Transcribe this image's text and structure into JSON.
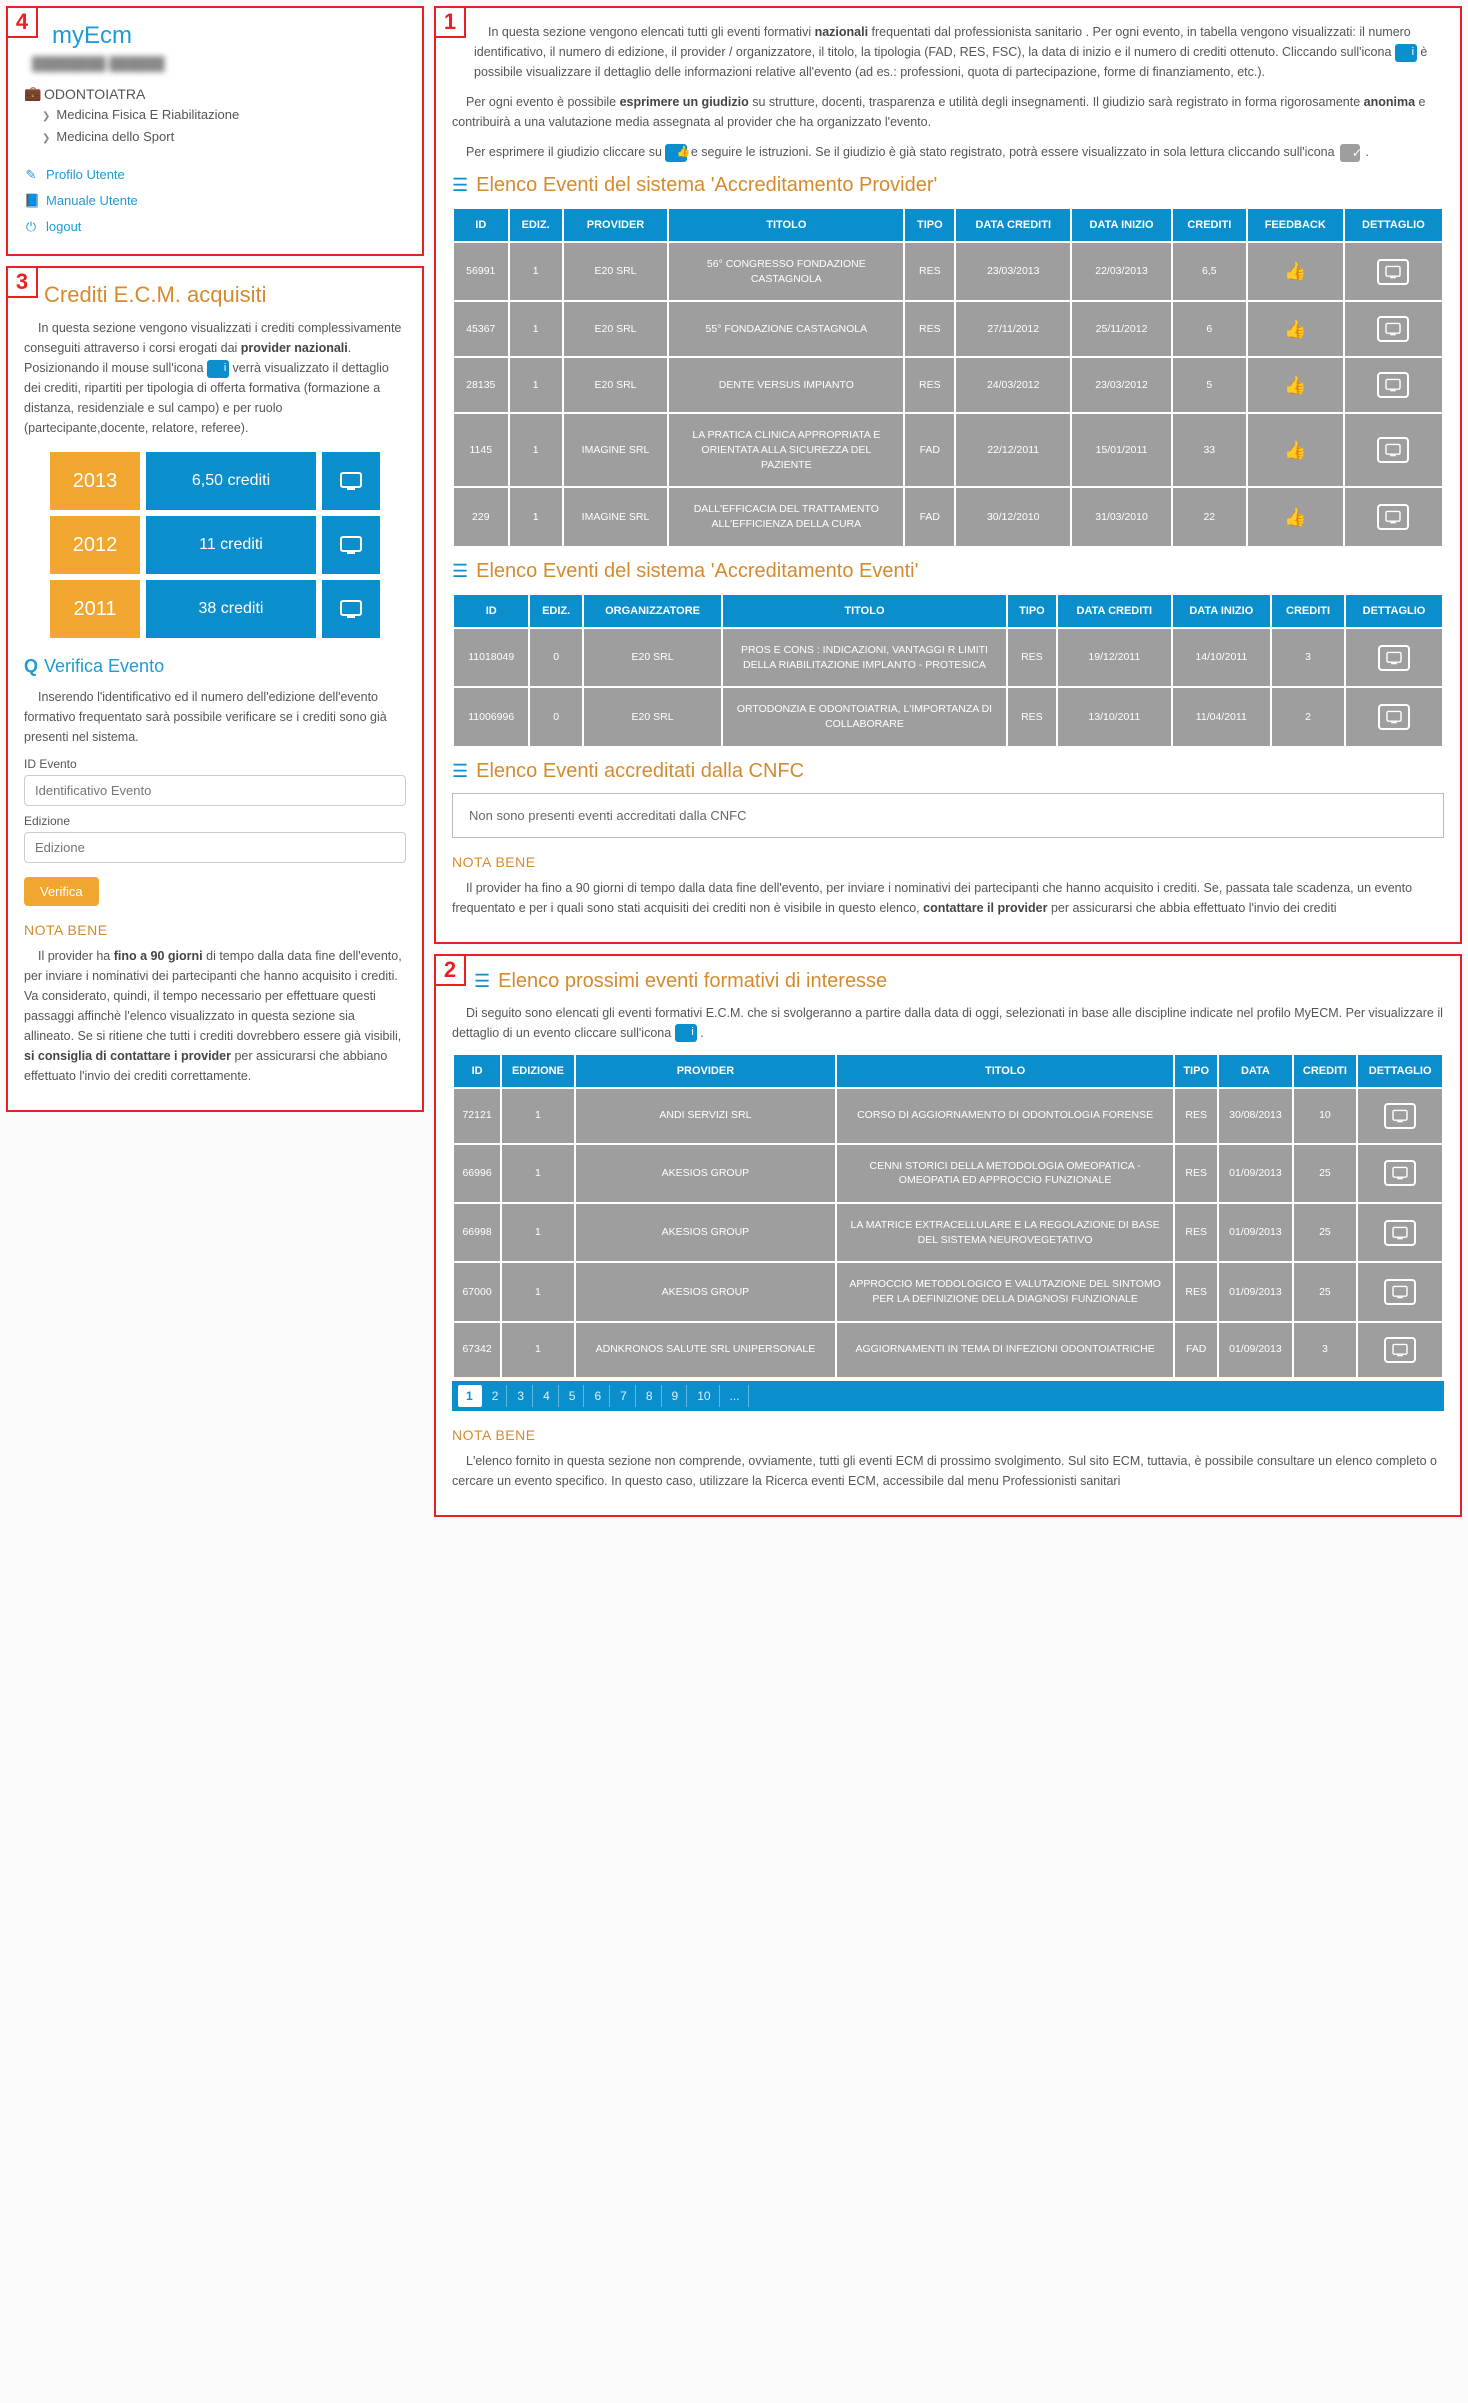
{
  "colors": {
    "accent": "#0b8fcc",
    "orange": "#f0a62f",
    "highlight": "#d68a2e",
    "danger": "#ec2024",
    "grey": "#9e9e9e"
  },
  "badges": {
    "p1": "1",
    "p2": "2",
    "p3": "3",
    "p4": "4"
  },
  "sidebar": {
    "brand": "myEcm",
    "blurred": "████████ ██████",
    "profession_icon": "briefcase",
    "profession": "ODONTOIATRA",
    "spec1": "Medicina Fisica E Riabilitazione",
    "spec2": "Medicina dello Sport",
    "link_profile": "Profilo Utente",
    "link_manual": "Manuale Utente",
    "link_logout": "logout"
  },
  "credits": {
    "title": "Crediti E.C.M. acquisiti",
    "intro_a": "In questa sezione vengono visualizzati i crediti complessivamente conseguiti attraverso i corsi erogati dai ",
    "intro_b": "provider nazionali",
    "intro_c": ". Posizionando il mouse sull'icona ",
    "intro_d": " verrà visualizzato il dettaglio dei crediti, ripartiti per tipologia di offerta formativa (formazione a distanza, residenziale e sul campo) e per ruolo (partecipante,docente, relatore, referee).",
    "rows": [
      {
        "year": "2013",
        "credits": "6,50 crediti"
      },
      {
        "year": "2012",
        "credits": "11 crediti"
      },
      {
        "year": "2011",
        "credits": "38 crediti"
      }
    ],
    "verify_h": "Verifica Evento",
    "verify_intro": "Inserendo l'identificativo ed il numero dell'edizione dell'evento formativo frequentato sarà possibile verificare se i crediti sono già presenti nel sistema.",
    "id_label": "ID Evento",
    "id_ph": "Identificativo Evento",
    "ed_label": "Edizione",
    "ed_ph": "Edizione",
    "verify_btn": "Verifica",
    "nota_h": "NOTA BENE",
    "nota_a": "Il provider ha ",
    "nota_b": "fino a 90 giorni",
    "nota_c": " di tempo dalla data fine dell'evento, per inviare i nominativi dei partecipanti che hanno acquisito i crediti. Va considerato, quindi, il tempo necessario per effettuare questi passaggi affinchè l'elenco visualizzato in questa sezione sia allineato. Se si ritiene che tutti i crediti dovrebbero essere già visibili, ",
    "nota_d": "si consiglia di contattare i provider",
    "nota_e": " per assicurarsi che abbiano effettuato l'invio dei crediti correttamente."
  },
  "main": {
    "p1a": "In questa sezione vengono elencati tutti gli eventi formativi ",
    "p1b": "nazionali",
    "p1c": " frequentati dal professionista sanitario . Per ogni evento, in tabella vengono visualizzati: il numero identificativo, il numero di edizione, il provider / organizzatore, il titolo, la tipologia (FAD, RES, FSC), la data di inizio e il numero di crediti ottenuto. Cliccando sull'icona ",
    "p1d": " è possibile visualizzare il dettaglio delle informazioni relative all'evento (ad es.: professioni, quota di partecipazione, forme di finanziamento, etc.).",
    "p2a": "Per ogni evento è possibile ",
    "p2b": "esprimere un giudizio",
    "p2c": " su strutture, docenti, trasparenza e utilità degli insegnamenti. Il giudizio sarà registrato in forma rigorosamente ",
    "p2d": "anonima",
    "p2e": " e contribuirà a una valutazione media assegnata al provider che ha organizzato l'evento.",
    "p3a": "Per esprimere il giudizio cliccare su ",
    "p3b": " e seguire le istruzioni. Se il giudizio è già stato registrato, potrà essere visualizzato in sola lettura cliccando sull'icona ",
    "h1": "Elenco Eventi del sistema 'Accreditamento Provider'",
    "h2": "Elenco Eventi del sistema 'Accreditamento Eventi'",
    "h3": "Elenco Eventi accreditati dalla CNFC",
    "empty": "Non sono presenti eventi accreditati dalla CNFC",
    "nota_h": "NOTA BENE",
    "nota_a": "Il provider ha fino a 90 giorni di tempo dalla data fine dell'evento, per inviare i nominativi dei partecipanti che hanno acquisito i crediti. Se, passata tale scadenza, un evento frequentato e per i quali sono stati acquisiti dei crediti non è visibile in questo elenco, ",
    "nota_b": "contattare il provider",
    "nota_c": " per assicurarsi che abbia effettuato l'invio dei crediti"
  },
  "t1": {
    "cols": [
      "ID",
      "EDIZ.",
      "PROVIDER",
      "TITOLO",
      "TIPO",
      "DATA CREDITI",
      "DATA INIZIO",
      "CREDITI",
      "FEEDBACK",
      "DETTAGLIO"
    ],
    "rows": [
      {
        "id": "56991",
        "ed": "1",
        "prov": "E20 SRL",
        "title": "56° CONGRESSO FONDAZIONE CASTAGNOLA",
        "tipo": "RES",
        "dc": "23/03/2013",
        "di": "22/03/2013",
        "cr": "6,5"
      },
      {
        "id": "45367",
        "ed": "1",
        "prov": "E20 SRL",
        "title": "55° FONDAZIONE CASTAGNOLA",
        "tipo": "RES",
        "dc": "27/11/2012",
        "di": "25/11/2012",
        "cr": "6"
      },
      {
        "id": "28135",
        "ed": "1",
        "prov": "E20 SRL",
        "title": "DENTE VERSUS IMPIANTO",
        "tipo": "RES",
        "dc": "24/03/2012",
        "di": "23/03/2012",
        "cr": "5"
      },
      {
        "id": "1145",
        "ed": "1",
        "prov": "IMAGINE SRL",
        "title": "LA PRATICA CLINICA APPROPRIATA E ORIENTATA ALLA SICUREZZA DEL PAZIENTE",
        "tipo": "FAD",
        "dc": "22/12/2011",
        "di": "15/01/2011",
        "cr": "33"
      },
      {
        "id": "229",
        "ed": "1",
        "prov": "IMAGINE SRL",
        "title": "DALL'EFFICACIA DEL TRATTAMENTO ALL'EFFICIENZA DELLA CURA",
        "tipo": "FAD",
        "dc": "30/12/2010",
        "di": "31/03/2010",
        "cr": "22"
      }
    ]
  },
  "t2": {
    "cols": [
      "ID",
      "EDIZ.",
      "ORGANIZZATORE",
      "TITOLO",
      "TIPO",
      "DATA CREDITI",
      "DATA INIZIO",
      "CREDITI",
      "DETTAGLIO"
    ],
    "rows": [
      {
        "id": "11018049",
        "ed": "0",
        "prov": "E20 SRL",
        "title": "PROS E CONS : INDICAZIONI, VANTAGGI R LIMITI DELLA RIABILITAZIONE IMPLANTO - PROTESICA",
        "tipo": "RES",
        "dc": "19/12/2011",
        "di": "14/10/2011",
        "cr": "3"
      },
      {
        "id": "11006996",
        "ed": "0",
        "prov": "E20 SRL",
        "title": "ORTODONZIA E ODONTOIATRIA, L'IMPORTANZA DI COLLABORARE",
        "tipo": "RES",
        "dc": "13/10/2011",
        "di": "11/04/2011",
        "cr": "2"
      }
    ]
  },
  "upcoming": {
    "title": "Elenco prossimi eventi formativi di interesse",
    "intro_a": "Di seguito sono elencati gli eventi formativi E.C.M. che si svolgeranno a partire dalla data di oggi, selezionati in base alle discipline indicate nel profilo MyECM. Per visualizzare il dettaglio di un evento cliccare sull'icona ",
    "cols": [
      "ID",
      "EDIZIONE",
      "PROVIDER",
      "TITOLO",
      "TIPO",
      "DATA",
      "CREDITI",
      "DETTAGLIO"
    ],
    "rows": [
      {
        "id": "72121",
        "ed": "1",
        "prov": "ANDI SERVIZI SRL",
        "title": "CORSO DI AGGIORNAMENTO DI ODONTOLOGIA FORENSE",
        "tipo": "RES",
        "data": "30/08/2013",
        "cr": "10"
      },
      {
        "id": "66996",
        "ed": "1",
        "prov": "AKESIOS GROUP",
        "title": "CENNI STORICI DELLA METODOLOGIA OMEOPATICA - OMEOPATIA ED APPROCCIO FUNZIONALE",
        "tipo": "RES",
        "data": "01/09/2013",
        "cr": "25"
      },
      {
        "id": "66998",
        "ed": "1",
        "prov": "AKESIOS GROUP",
        "title": "LA MATRICE EXTRACELLULARE E LA REGOLAZIONE DI BASE DEL SISTEMA NEUROVEGETATIVO",
        "tipo": "RES",
        "data": "01/09/2013",
        "cr": "25"
      },
      {
        "id": "67000",
        "ed": "1",
        "prov": "AKESIOS GROUP",
        "title": "APPROCCIO METODOLOGICO E VALUTAZIONE DEL SINTOMO PER LA DEFINIZIONE DELLA DIAGNOSI FUNZIONALE",
        "tipo": "RES",
        "data": "01/09/2013",
        "cr": "25"
      },
      {
        "id": "67342",
        "ed": "1",
        "prov": "ADNKRONOS SALUTE SRL UNIPERSONALE",
        "title": "AGGIORNAMENTI IN TEMA DI INFEZIONI ODONTOIATRICHE",
        "tipo": "FAD",
        "data": "01/09/2013",
        "cr": "3"
      }
    ],
    "pages": [
      "1",
      "2",
      "3",
      "4",
      "5",
      "6",
      "7",
      "8",
      "9",
      "10",
      "..."
    ],
    "nota_h": "NOTA BENE",
    "nota": "L'elenco fornito in questa sezione non comprende, ovviamente, tutti gli eventi ECM di prossimo svolgimento. Sul sito ECM, tuttavia, è possibile consultare un elenco completo o cercare un evento specifico. In questo caso, utilizzare la Ricerca eventi ECM, accessibile dal menu Professionisti sanitari"
  }
}
